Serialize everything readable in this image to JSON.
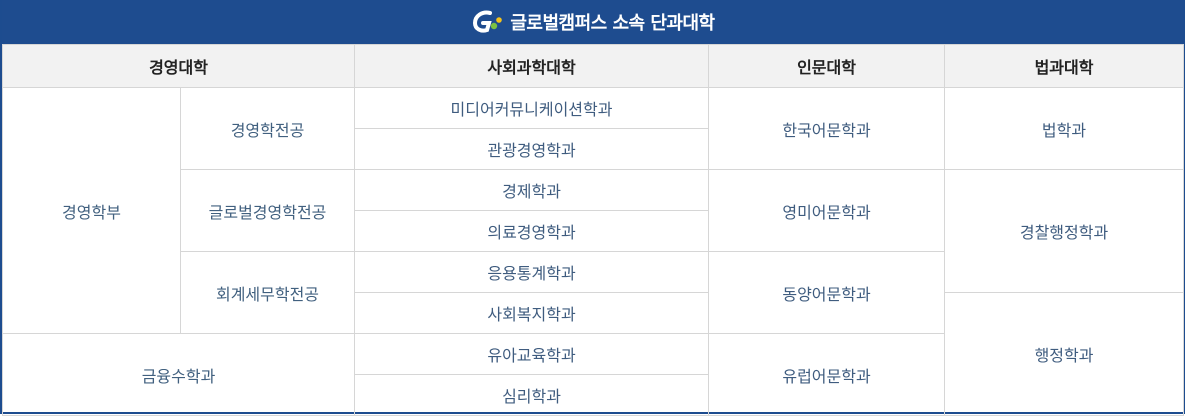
{
  "header": {
    "title": "글로벌캠퍼스 소속 단과대학"
  },
  "columns": [
    {
      "label": "경영대학"
    },
    {
      "label": "사회과학대학"
    },
    {
      "label": "인문대학"
    },
    {
      "label": "법과대학"
    }
  ],
  "business": {
    "faculty": "경영학부",
    "majors": [
      "경영학전공",
      "글로벌경영학전공",
      "회계세무학전공"
    ],
    "finance": "금융수학과"
  },
  "social": [
    "미디어커뮤니케이션학과",
    "관광경영학과",
    "경제학과",
    "의료경영학과",
    "응용통계학과",
    "사회복지학과",
    "유아교육학과",
    "심리학과"
  ],
  "humanities": [
    "한국어문학과",
    "영미어문학과",
    "동양어문학과",
    "유럽어문학과"
  ],
  "law": [
    "법학과",
    "경찰행정학과",
    "행정학과"
  ],
  "colors": {
    "banner": "#1e4c8f",
    "text": "#3f5c7f",
    "header_bg": "#f2f2f2"
  }
}
